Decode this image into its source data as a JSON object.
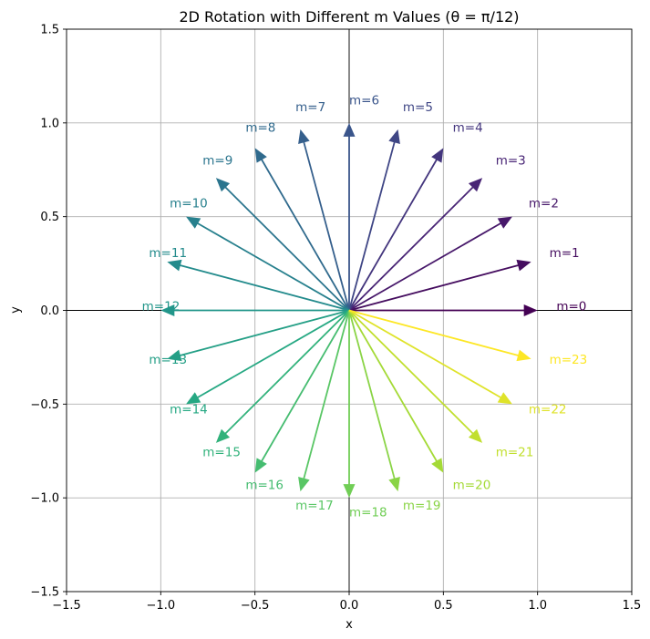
{
  "chart_data": {
    "type": "quiver",
    "title": "2D Rotation with Different m Values (θ = π/12)",
    "xlabel": "x",
    "ylabel": "y",
    "xlim": [
      -1.5,
      1.5
    ],
    "ylim": [
      -1.5,
      1.5
    ],
    "xticks": [
      -1.5,
      -1.0,
      -0.5,
      0.0,
      0.5,
      1.0,
      1.5
    ],
    "yticks": [
      -1.5,
      -1.0,
      -0.5,
      0.0,
      0.5,
      1.0,
      1.5
    ],
    "xtick_labels": [
      "−1.5",
      "−1.0",
      "−0.5",
      "0.0",
      "0.5",
      "1.0",
      "1.5"
    ],
    "ytick_labels": [
      "−1.5",
      "−1.0",
      "−0.5",
      "0.0",
      "0.5",
      "1.0",
      "1.5"
    ],
    "grid": true,
    "origin": [
      0,
      0
    ],
    "theta": "π/12",
    "colormap": "viridis",
    "vectors": [
      {
        "label": "m=0",
        "x": 1.0,
        "y": 0.0
      },
      {
        "label": "m=1",
        "x": 0.966,
        "y": 0.259
      },
      {
        "label": "m=2",
        "x": 0.866,
        "y": 0.5
      },
      {
        "label": "m=3",
        "x": 0.707,
        "y": 0.707
      },
      {
        "label": "m=4",
        "x": 0.5,
        "y": 0.866
      },
      {
        "label": "m=5",
        "x": 0.259,
        "y": 0.966
      },
      {
        "label": "m=6",
        "x": 0.0,
        "y": 1.0
      },
      {
        "label": "m=7",
        "x": -0.259,
        "y": 0.966
      },
      {
        "label": "m=8",
        "x": -0.5,
        "y": 0.866
      },
      {
        "label": "m=9",
        "x": -0.707,
        "y": 0.707
      },
      {
        "label": "m=10",
        "x": -0.866,
        "y": 0.5
      },
      {
        "label": "m=11",
        "x": -0.966,
        "y": 0.259
      },
      {
        "label": "m=12",
        "x": -1.0,
        "y": 0.0
      },
      {
        "label": "m=13",
        "x": -0.966,
        "y": -0.259
      },
      {
        "label": "m=14",
        "x": -0.866,
        "y": -0.5
      },
      {
        "label": "m=15",
        "x": -0.707,
        "y": -0.707
      },
      {
        "label": "m=16",
        "x": -0.5,
        "y": -0.866
      },
      {
        "label": "m=17",
        "x": -0.259,
        "y": -0.966
      },
      {
        "label": "m=18",
        "x": 0.0,
        "y": -1.0
      },
      {
        "label": "m=19",
        "x": 0.259,
        "y": -0.966
      },
      {
        "label": "m=20",
        "x": 0.5,
        "y": -0.866
      },
      {
        "label": "m=21",
        "x": 0.707,
        "y": -0.707
      },
      {
        "label": "m=22",
        "x": 0.866,
        "y": -0.5
      },
      {
        "label": "m=23",
        "x": 0.966,
        "y": -0.259
      }
    ]
  }
}
